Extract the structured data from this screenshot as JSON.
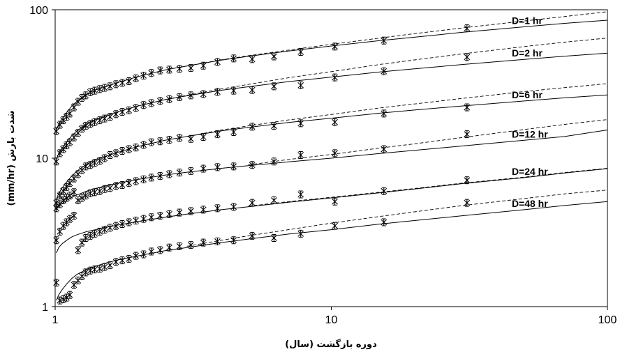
{
  "chart_data": {
    "type": "line",
    "x_scale": "log",
    "y_scale": "log",
    "xlim": [
      1,
      100
    ],
    "ylim": [
      1,
      100
    ],
    "grid": false,
    "xlabel": "دوره بازگشت (سال)",
    "ylabel": "شدت بارش (mm/hr)",
    "x_ticks": [
      {
        "value": 1,
        "label": "1"
      },
      {
        "value": 10,
        "label": "10"
      },
      {
        "value": 100,
        "label": "100"
      }
    ],
    "y_ticks": [
      {
        "value": 1,
        "label": "1"
      },
      {
        "value": 10,
        "label": "10"
      },
      {
        "value": 100,
        "label": "100"
      }
    ],
    "series": [
      {
        "name": "D=1 hr",
        "observed": {
          "x": [
            1.01,
            1.04,
            1.07,
            1.1,
            1.13,
            1.17,
            1.21,
            1.25,
            1.29,
            1.34,
            1.39,
            1.45,
            1.51,
            1.58,
            1.66,
            1.75,
            1.85,
            1.96,
            2.09,
            2.23,
            2.4,
            2.59,
            2.82,
            3.1,
            3.44,
            3.87,
            4.43,
            5.17,
            6.2,
            7.75,
            10.3,
            15.5,
            31
          ],
          "y": [
            15.2,
            16.8,
            18.0,
            19.0,
            20.0,
            22.0,
            24.0,
            25.5,
            26.5,
            27.8,
            28.5,
            29.2,
            29.8,
            30.5,
            31.5,
            32.2,
            33.0,
            34.5,
            36.0,
            37.5,
            39.0,
            39.5,
            40.0,
            40.5,
            42.0,
            44.5,
            47.0,
            46.5,
            48.5,
            52.0,
            56.5,
            62.0,
            75.0
          ]
        },
        "fitted": {
          "x": [
            1.01,
            1.03,
            1.06,
            1.1,
            1.15,
            1.2,
            1.3,
            1.4,
            1.5,
            1.7,
            2,
            2.5,
            3,
            4,
            5,
            7,
            10,
            15,
            20,
            30,
            50,
            70,
            100
          ],
          "y": [
            15.5,
            17.0,
            18.5,
            20.3,
            22.5,
            24.2,
            27.0,
            28.8,
            30.0,
            32.5,
            35.5,
            39.3,
            41.8,
            45.8,
            48.5,
            52.7,
            57.0,
            62.0,
            65.3,
            70.5,
            76.7,
            81.0,
            85.0
          ]
        },
        "projected": {
          "x": [
            3,
            4,
            5,
            7,
            10,
            15,
            20,
            30,
            50,
            70,
            100
          ],
          "y": [
            41.8,
            46.0,
            49.0,
            53.5,
            58.5,
            64.5,
            69.0,
            75.5,
            84.0,
            90.0,
            97.0
          ]
        }
      },
      {
        "name": "D=2 hr",
        "observed": {
          "x": [
            1.01,
            1.04,
            1.07,
            1.1,
            1.13,
            1.17,
            1.21,
            1.25,
            1.29,
            1.34,
            1.39,
            1.45,
            1.51,
            1.58,
            1.66,
            1.75,
            1.85,
            1.96,
            2.09,
            2.23,
            2.4,
            2.59,
            2.82,
            3.1,
            3.44,
            3.87,
            4.43,
            5.17,
            6.2,
            7.75,
            10.3,
            15.5,
            31
          ],
          "y": [
            9.5,
            10.8,
            11.5,
            12.2,
            12.8,
            13.8,
            14.8,
            15.8,
            16.5,
            17.0,
            17.5,
            18.0,
            18.5,
            19.0,
            19.8,
            20.5,
            21.0,
            21.8,
            22.8,
            23.5,
            24.3,
            25.0,
            25.8,
            26.5,
            27.0,
            28.0,
            28.5,
            28.8,
            30.5,
            31.0,
            35.0,
            38.5,
            48.0
          ]
        },
        "fitted": {
          "x": [
            1.01,
            1.03,
            1.06,
            1.1,
            1.15,
            1.2,
            1.3,
            1.4,
            1.5,
            1.7,
            2,
            2.5,
            3,
            4,
            5,
            7,
            10,
            15,
            20,
            30,
            50,
            70,
            100
          ],
          "y": [
            9.8,
            10.8,
            11.7,
            12.9,
            14.2,
            15.3,
            17.0,
            18.2,
            19.0,
            20.6,
            22.5,
            24.8,
            26.3,
            28.7,
            30.3,
            32.8,
            35.2,
            38.1,
            40.0,
            42.8,
            46.3,
            48.7,
            51.0
          ]
        },
        "projected": {
          "x": [
            2.5,
            3,
            4,
            5,
            7,
            10,
            15,
            20,
            30,
            50,
            70,
            100
          ],
          "y": [
            24.8,
            26.5,
            29.3,
            31.4,
            34.8,
            38.3,
            42.8,
            45.9,
            50.5,
            56.5,
            60.5,
            64.5
          ]
        }
      },
      {
        "name": "D=6 hr",
        "observed": {
          "x": [
            1.01,
            1.04,
            1.07,
            1.1,
            1.13,
            1.17,
            1.21,
            1.25,
            1.29,
            1.34,
            1.39,
            1.45,
            1.51,
            1.58,
            1.66,
            1.75,
            1.85,
            1.96,
            2.09,
            2.23,
            2.4,
            2.59,
            2.82,
            3.1,
            3.44,
            3.87,
            4.43,
            5.17,
            6.2,
            7.75,
            10.3,
            15.5,
            31
          ],
          "y": [
            5.0,
            5.6,
            6.0,
            6.4,
            6.8,
            7.3,
            7.8,
            8.3,
            8.8,
            9.0,
            9.3,
            9.6,
            10.0,
            10.5,
            10.8,
            11.2,
            11.5,
            11.8,
            12.3,
            12.8,
            13.0,
            13.3,
            13.7,
            13.5,
            13.9,
            14.5,
            15.0,
            16.3,
            16.5,
            17.2,
            17.5,
            20.0,
            22.0
          ]
        },
        "fitted": {
          "x": [
            1.01,
            1.03,
            1.06,
            1.1,
            1.15,
            1.2,
            1.3,
            1.4,
            1.5,
            1.7,
            2,
            2.5,
            3,
            4,
            5,
            7,
            10,
            15,
            20,
            30,
            50,
            70,
            100
          ],
          "y": [
            5.3,
            5.8,
            6.3,
            6.9,
            7.6,
            8.2,
            9.1,
            9.7,
            10.2,
            11.0,
            12.0,
            13.2,
            14.0,
            15.3,
            16.1,
            17.4,
            18.6,
            20.1,
            21.1,
            22.5,
            24.3,
            25.5,
            26.7
          ]
        },
        "projected": {
          "x": [
            3,
            4,
            5,
            7,
            10,
            15,
            20,
            30,
            50,
            70,
            100
          ],
          "y": [
            14.0,
            15.5,
            16.5,
            18.1,
            19.7,
            21.8,
            23.2,
            25.3,
            28.1,
            29.9,
            31.8
          ]
        }
      },
      {
        "name": "D=12 hr",
        "observed": {
          "x": [
            1.01,
            1.04,
            1.07,
            1.1,
            1.13,
            1.17,
            1.21,
            1.25,
            1.29,
            1.34,
            1.39,
            1.45,
            1.51,
            1.58,
            1.66,
            1.75,
            1.85,
            1.96,
            2.09,
            2.23,
            2.4,
            2.59,
            2.82,
            3.1,
            3.44,
            3.87,
            4.43,
            5.17,
            6.2,
            7.75,
            10.3,
            15.5,
            31
          ],
          "y": [
            4.6,
            4.9,
            5.2,
            5.4,
            5.6,
            5.9,
            5.2,
            5.4,
            5.6,
            5.8,
            5.9,
            6.0,
            6.2,
            6.3,
            6.5,
            6.6,
            6.8,
            7.0,
            7.2,
            7.4,
            7.6,
            7.8,
            8.0,
            8.2,
            8.5,
            8.7,
            8.8,
            9.0,
            9.5,
            10.5,
            10.8,
            11.5,
            14.5
          ]
        },
        "fitted": {
          "x": [
            1.01,
            1.03,
            1.06,
            1.1,
            1.15,
            1.2,
            1.3,
            1.4,
            1.5,
            1.7,
            2,
            2.5,
            3,
            4,
            5,
            7,
            10,
            15,
            20,
            30,
            50,
            70,
            100
          ],
          "y": [
            4.5,
            4.75,
            4.95,
            5.2,
            5.45,
            5.65,
            6.0,
            6.25,
            6.45,
            6.8,
            7.2,
            7.7,
            8.05,
            8.55,
            8.9,
            9.45,
            10.0,
            10.75,
            11.3,
            12.1,
            13.2,
            14.0,
            15.5
          ]
        },
        "projected": {
          "x": [
            5,
            7,
            10,
            15,
            20,
            30,
            50,
            70,
            100
          ],
          "y": [
            9.0,
            9.8,
            10.6,
            11.7,
            12.5,
            13.8,
            15.6,
            16.9,
            18.2
          ]
        }
      },
      {
        "name": "D=24 hr",
        "observed": {
          "x": [
            1.01,
            1.04,
            1.07,
            1.1,
            1.13,
            1.17,
            1.21,
            1.25,
            1.29,
            1.34,
            1.39,
            1.45,
            1.51,
            1.58,
            1.66,
            1.75,
            1.85,
            1.96,
            2.09,
            2.23,
            2.4,
            2.59,
            2.82,
            3.1,
            3.44,
            3.87,
            4.43,
            5.17,
            6.2,
            7.75,
            10.3,
            15.5,
            31
          ],
          "y": [
            2.8,
            3.2,
            3.5,
            3.7,
            3.9,
            4.1,
            2.4,
            2.7,
            2.9,
            3.0,
            3.1,
            3.2,
            3.3,
            3.4,
            3.5,
            3.6,
            3.7,
            3.8,
            3.9,
            4.0,
            4.1,
            4.2,
            4.3,
            4.4,
            4.5,
            4.6,
            4.7,
            5.0,
            5.2,
            5.7,
            5.1,
            6.0,
            7.1
          ]
        },
        "fitted": {
          "x": [
            1.01,
            1.03,
            1.06,
            1.1,
            1.15,
            1.2,
            1.3,
            1.4,
            1.5,
            1.7,
            2,
            2.5,
            3,
            4,
            5,
            7,
            10,
            15,
            20,
            30,
            50,
            70,
            100
          ],
          "y": [
            2.3,
            2.5,
            2.65,
            2.8,
            2.95,
            3.05,
            3.2,
            3.3,
            3.4,
            3.55,
            3.75,
            4.0,
            4.2,
            4.5,
            4.7,
            5.05,
            5.4,
            5.85,
            6.2,
            6.75,
            7.4,
            7.95,
            8.5
          ]
        },
        "projected": {
          "x": [
            5,
            7,
            10,
            15,
            20,
            30,
            50,
            70,
            100
          ],
          "y": [
            4.75,
            5.1,
            5.45,
            5.9,
            6.25,
            6.8,
            7.45,
            8.0,
            8.55
          ]
        }
      },
      {
        "name": "D=48 hr",
        "observed": {
          "x": [
            1.01,
            1.04,
            1.07,
            1.1,
            1.13,
            1.17,
            1.21,
            1.25,
            1.29,
            1.34,
            1.39,
            1.45,
            1.51,
            1.58,
            1.66,
            1.75,
            1.85,
            1.96,
            2.09,
            2.23,
            2.4,
            2.59,
            2.82,
            3.1,
            3.44,
            3.87,
            4.43,
            5.17,
            6.2,
            7.75,
            10.3,
            15.5,
            31
          ],
          "y": [
            1.45,
            1.1,
            1.12,
            1.15,
            1.2,
            1.4,
            1.5,
            1.6,
            1.7,
            1.75,
            1.78,
            1.8,
            1.85,
            1.9,
            2.0,
            2.05,
            2.1,
            2.2,
            2.25,
            2.35,
            2.4,
            2.5,
            2.55,
            2.6,
            2.7,
            2.75,
            2.8,
            3.0,
            2.9,
            3.1,
            3.5,
            3.7,
            5.0
          ]
        },
        "fitted": {
          "x": [
            1.01,
            1.03,
            1.06,
            1.1,
            1.15,
            1.2,
            1.3,
            1.4,
            1.5,
            1.7,
            2,
            2.5,
            3,
            4,
            5,
            7,
            10,
            15,
            20,
            30,
            50,
            70,
            100
          ],
          "y": [
            1.1,
            1.2,
            1.3,
            1.42,
            1.55,
            1.65,
            1.78,
            1.87,
            1.95,
            2.07,
            2.2,
            2.38,
            2.5,
            2.7,
            2.85,
            3.08,
            3.3,
            3.6,
            3.8,
            4.1,
            4.5,
            4.8,
            5.1
          ]
        },
        "projected": {
          "x": [
            3,
            4,
            5,
            7,
            10,
            15,
            20,
            30,
            50,
            70,
            100
          ],
          "y": [
            2.55,
            2.8,
            3.0,
            3.3,
            3.65,
            4.05,
            4.35,
            4.8,
            5.35,
            5.75,
            6.1
          ]
        }
      }
    ]
  }
}
